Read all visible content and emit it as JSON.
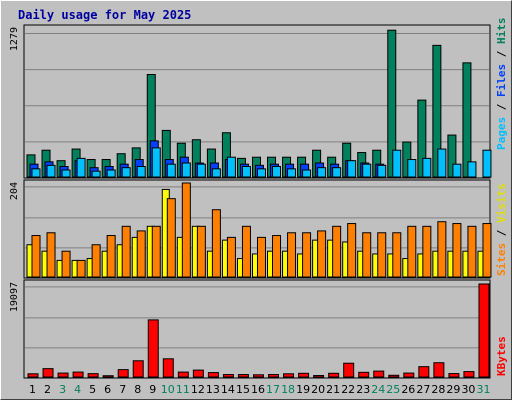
{
  "title": "Daily usage for May 2025",
  "colors": {
    "background": "#c0c0c0",
    "title": "#0000a0",
    "hits": "#00805c",
    "files": "#0040ff",
    "pages": "#00c0ff",
    "visits": "#ffff00",
    "sites": "#ff8000",
    "kbytes": "#ff0000",
    "weekend_label": "#00805c",
    "grid": "#808080"
  },
  "legend": {
    "top": [
      {
        "text": "Pages",
        "color": "#00c0ff"
      },
      {
        "text": " / ",
        "color": "#000000"
      },
      {
        "text": "Files",
        "color": "#0040ff"
      },
      {
        "text": " / ",
        "color": "#000000"
      },
      {
        "text": "Hits",
        "color": "#00805c"
      }
    ],
    "middle": [
      {
        "text": "Sites",
        "color": "#ff8000"
      },
      {
        "text": " / ",
        "color": "#000000"
      },
      {
        "text": "Visits",
        "color": "#e0e000"
      }
    ],
    "bottom": [
      {
        "text": "KBytes",
        "color": "#ff0000"
      }
    ]
  },
  "chart_data": {
    "type": "bar",
    "title": "Daily usage for May 2025",
    "categories": [
      "1",
      "2",
      "3",
      "4",
      "5",
      "6",
      "7",
      "8",
      "9",
      "10",
      "11",
      "12",
      "13",
      "14",
      "15",
      "16",
      "17",
      "18",
      "19",
      "20",
      "21",
      "22",
      "23",
      "24",
      "25",
      "26",
      "27",
      "28",
      "29",
      "30",
      "31"
    ],
    "weekend_days": [
      "3",
      "4",
      "10",
      "11",
      "17",
      "18",
      "24",
      "25",
      "31"
    ],
    "panels": [
      {
        "name": "hits-files-pages",
        "ymax": 1279,
        "ymax_label": "1279",
        "series": [
          {
            "name": "Hits",
            "color": "#00805c",
            "values": [
              190,
              230,
              140,
              240,
              150,
              150,
              200,
              250,
              880,
              400,
              290,
              320,
              240,
              380,
              160,
              170,
              170,
              170,
              170,
              230,
              170,
              290,
              210,
              230,
              1260,
              300,
              660,
              1130,
              360,
              980,
              0
            ]
          },
          {
            "name": "Files",
            "color": "#0040ff",
            "values": [
              110,
              130,
              90,
              140,
              80,
              90,
              110,
              150,
              310,
              150,
              170,
              120,
              120,
              150,
              110,
              100,
              110,
              110,
              110,
              120,
              110,
              140,
              120,
              110,
              0,
              0,
              0,
              0,
              0,
              0,
              0
            ]
          },
          {
            "name": "Pages",
            "color": "#00c0ff",
            "values": [
              70,
              100,
              60,
              160,
              50,
              60,
              80,
              90,
              250,
              110,
              120,
              110,
              70,
              170,
              90,
              70,
              90,
              70,
              60,
              80,
              80,
              140,
              110,
              100,
              230,
              150,
              160,
              240,
              110,
              130,
              230
            ]
          }
        ]
      },
      {
        "name": "visits-sites",
        "ymax": 204,
        "ymax_label": "204",
        "series": [
          {
            "name": "Visits",
            "color": "#ffff00",
            "values": [
              70,
              56,
              36,
              36,
              40,
              56,
              70,
              86,
              110,
              190,
              86,
              110,
              56,
              80,
              40,
              50,
              56,
              56,
              50,
              80,
              80,
              76,
              56,
              50,
              50,
              40,
              50,
              56,
              56,
              56,
              56
            ]
          },
          {
            "name": "Sites",
            "color": "#ff8000",
            "values": [
              90,
              96,
              56,
              36,
              70,
              90,
              110,
              100,
              110,
              170,
              204,
              110,
              146,
              86,
              110,
              86,
              90,
              96,
              96,
              100,
              110,
              116,
              96,
              96,
              96,
              110,
              110,
              120,
              116,
              110,
              116
            ]
          }
        ]
      },
      {
        "name": "kbytes",
        "ymax": 19097,
        "ymax_label": "19097",
        "series": [
          {
            "name": "KBytes",
            "color": "#ff0000",
            "values": [
              650,
              1700,
              800,
              1000,
              680,
              260,
              1500,
              3300,
              11600,
              3700,
              1000,
              1400,
              900,
              500,
              500,
              450,
              500,
              650,
              750,
              300,
              750,
              2800,
              950,
              1200,
              350,
              800,
              2100,
              2900,
              700,
              1100,
              18900
            ]
          }
        ]
      }
    ]
  }
}
